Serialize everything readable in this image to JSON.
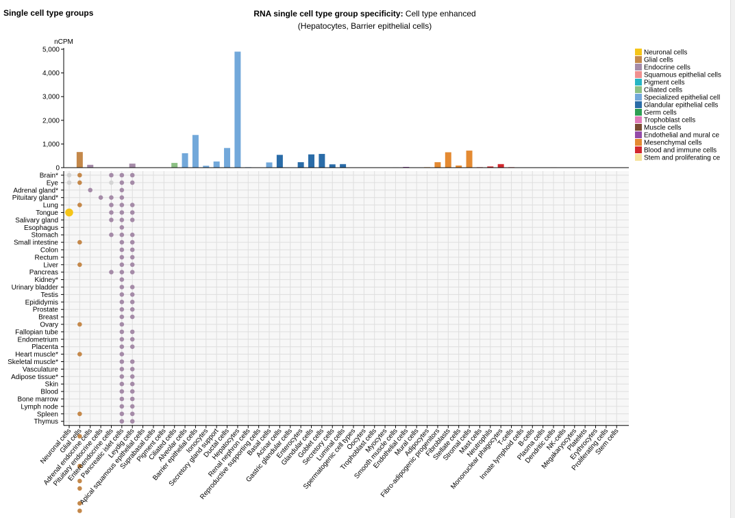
{
  "page": {
    "title": "Single cell type groups"
  },
  "chart_data": {
    "type": "bar+dotmatrix",
    "title_bold": "RNA single cell type group specificity:",
    "title_rest": " Cell type enhanced",
    "subtitle": "(Hepatocytes, Barrier epithelial cells)",
    "ylabel": "nCPM",
    "ylim": [
      0,
      5000
    ],
    "yticks": [
      0,
      1000,
      2000,
      3000,
      4000,
      5000
    ],
    "ytick_labels": [
      "0",
      "1,000",
      "2,000",
      "3,000",
      "4,000",
      "5,000"
    ],
    "groups": [
      {
        "name": "Neuronal cells",
        "color": "#f5c518"
      },
      {
        "name": "Glial cells",
        "color": "#c4884a"
      },
      {
        "name": "Endocrine cells",
        "color": "#a58ba8"
      },
      {
        "name": "Squamous epithelial cells",
        "color": "#f09090"
      },
      {
        "name": "Pigment cells",
        "color": "#26b5c4"
      },
      {
        "name": "Ciliated cells",
        "color": "#8cc084"
      },
      {
        "name": "Specialized epithelial cells",
        "color": "#72a8da"
      },
      {
        "name": "Glandular epithelial cells",
        "color": "#2a6ca8"
      },
      {
        "name": "Germ cells",
        "color": "#2e9e54"
      },
      {
        "name": "Trophoblast cells",
        "color": "#e07ab8"
      },
      {
        "name": "Muscle cells",
        "color": "#7a4a32"
      },
      {
        "name": "Endothelial and mural cells",
        "color": "#944aa8"
      },
      {
        "name": "Mesenchymal cells",
        "color": "#e48a32"
      },
      {
        "name": "Blood and immune cells",
        "color": "#d2282e"
      },
      {
        "name": "Stem and proliferating cells",
        "color": "#f6e29c"
      }
    ],
    "legend_labels": [
      "Neuronal cells",
      "Glial cells",
      "Endocrine cells",
      "Squamous epithelial cells",
      "Pigment cells",
      "Ciliated cells",
      "Specialized epithelial cell",
      "Glandular epithelial cells",
      "Germ cells",
      "Trophoblast cells",
      "Muscle cells",
      "Endothelial and mural ce",
      "Mesenchymal cells",
      "Blood and immune cells",
      "Stem and proliferating ce"
    ],
    "categories": [
      {
        "name": "Neuronal cells",
        "group": 0,
        "value": 0
      },
      {
        "name": "Glial cells",
        "group": 1,
        "value": 660
      },
      {
        "name": "Adrenal endocrine cells",
        "group": 2,
        "value": 120
      },
      {
        "name": "Pituitary endocrine cells",
        "group": 2,
        "value": 0
      },
      {
        "name": "Enteroendocrine cells",
        "group": 2,
        "value": 0
      },
      {
        "name": "Pancreatic islet cells",
        "group": 2,
        "value": 0
      },
      {
        "name": "Leydig cells",
        "group": 2,
        "value": 170
      },
      {
        "name": "Apical squamous epithelial cells",
        "group": 3,
        "value": 0
      },
      {
        "name": "Suprabasal cells",
        "group": 3,
        "value": 0
      },
      {
        "name": "Pigment cells",
        "group": 4,
        "value": 0
      },
      {
        "name": "Ciliated cells",
        "group": 5,
        "value": 200
      },
      {
        "name": "Alveolar cells",
        "group": 6,
        "value": 610
      },
      {
        "name": "Barrier epithelial cells",
        "group": 6,
        "value": 1380
      },
      {
        "name": "Ionocytes",
        "group": 6,
        "value": 80
      },
      {
        "name": "Secretory gland support",
        "group": 6,
        "value": 260
      },
      {
        "name": "Ductal cells",
        "group": 6,
        "value": 830
      },
      {
        "name": "Hepatocytes",
        "group": 6,
        "value": 4900
      },
      {
        "name": "Renal nephron cells",
        "group": 6,
        "value": 20
      },
      {
        "name": "Reproductive supporting cells",
        "group": 6,
        "value": 0
      },
      {
        "name": "Basal cells",
        "group": 6,
        "value": 220
      },
      {
        "name": "Acinar cells",
        "group": 7,
        "value": 540
      },
      {
        "name": "Gastric glandular cells",
        "group": 7,
        "value": 0
      },
      {
        "name": "Enterocytes",
        "group": 7,
        "value": 230
      },
      {
        "name": "Glandular cells",
        "group": 7,
        "value": 560
      },
      {
        "name": "Goblet cells",
        "group": 7,
        "value": 580
      },
      {
        "name": "Secretory cells",
        "group": 7,
        "value": 140
      },
      {
        "name": "Luminal cells",
        "group": 7,
        "value": 150
      },
      {
        "name": "Spermatogenic cell types",
        "group": 8,
        "value": 0
      },
      {
        "name": "Oocytes",
        "group": 8,
        "value": 0
      },
      {
        "name": "Trophoblast cells",
        "group": 9,
        "value": 0
      },
      {
        "name": "Myocytes",
        "group": 10,
        "value": 0
      },
      {
        "name": "Smooth muscle cells",
        "group": 10,
        "value": 15
      },
      {
        "name": "Endothelial cells",
        "group": 11,
        "value": 30
      },
      {
        "name": "Mural cells",
        "group": 11,
        "value": 10
      },
      {
        "name": "Adipocytes",
        "group": 12,
        "value": 20
      },
      {
        "name": "Fibro-adipogenic progenitors",
        "group": 12,
        "value": 230
      },
      {
        "name": "Fibroblasts",
        "group": 12,
        "value": 650
      },
      {
        "name": "Stellate cells",
        "group": 12,
        "value": 90
      },
      {
        "name": "Stromal cells",
        "group": 12,
        "value": 720
      },
      {
        "name": "Mast cells",
        "group": 13,
        "value": 20
      },
      {
        "name": "Neutrophils",
        "group": 13,
        "value": 50
      },
      {
        "name": "Mononuclear phagocytes",
        "group": 13,
        "value": 150
      },
      {
        "name": "T-cells",
        "group": 13,
        "value": 20
      },
      {
        "name": "Innate lymphoid cells",
        "group": 13,
        "value": 10
      },
      {
        "name": "B-cells",
        "group": 13,
        "value": 10
      },
      {
        "name": "Plasma cells",
        "group": 13,
        "value": 10
      },
      {
        "name": "Dendritic cells",
        "group": 13,
        "value": 15
      },
      {
        "name": "NK-cells",
        "group": 13,
        "value": 10
      },
      {
        "name": "Megakaryocytes",
        "group": 13,
        "value": 0
      },
      {
        "name": "Platelets",
        "group": 13,
        "value": 0
      },
      {
        "name": "Erythrocytes",
        "group": 13,
        "value": 0
      },
      {
        "name": "Proliferating cells",
        "group": 14,
        "value": 0
      },
      {
        "name": "Stem cells",
        "group": 14,
        "value": 0
      }
    ],
    "tissues": [
      "Brain*",
      "Eye",
      "Adrenal gland*",
      "Pituitary gland*",
      "Lung",
      "Tongue",
      "Salivary gland",
      "Esophagus",
      "Stomach",
      "Small intestine",
      "Colon",
      "Rectum",
      "Liver",
      "Pancreas",
      "Kidney*",
      "Urinary bladder",
      "Testis",
      "Epididymis",
      "Prostate",
      "Breast",
      "Ovary",
      "Fallopian tube",
      "Endometrium",
      "Placenta",
      "Heart muscle*",
      "Skeletal muscle*",
      "Vasculature",
      "Adipose tissue*",
      "Skin",
      "Blood",
      "Bone marrow",
      "Lymph node",
      "Spleen",
      "Thymus"
    ],
    "dots": [
      [
        0,
        0,
        0
      ],
      [
        0,
        1,
        0
      ],
      [
        0,
        5,
        2
      ],
      [
        1,
        0,
        1
      ],
      [
        1,
        1,
        1
      ],
      [
        1,
        4,
        1
      ],
      [
        1,
        9,
        1
      ],
      [
        1,
        12,
        1
      ],
      [
        1,
        20,
        1
      ],
      [
        1,
        24,
        1
      ],
      [
        1,
        32,
        1
      ],
      [
        1,
        35,
        1
      ],
      [
        1,
        39,
        1
      ],
      [
        1,
        41,
        1
      ],
      [
        1,
        42,
        1
      ],
      [
        1,
        44,
        1
      ],
      [
        1,
        45,
        1
      ],
      [
        1,
        47,
        1
      ],
      [
        2,
        2,
        1
      ],
      [
        3,
        3,
        1
      ],
      [
        4,
        0,
        1
      ],
      [
        4,
        1,
        0
      ],
      [
        4,
        3,
        1
      ],
      [
        4,
        4,
        1
      ],
      [
        4,
        5,
        1
      ],
      [
        4,
        6,
        1
      ],
      [
        4,
        8,
        1
      ],
      [
        4,
        13,
        1
      ],
      [
        5,
        0,
        1
      ],
      [
        5,
        1,
        1
      ],
      [
        5,
        2,
        1
      ],
      [
        5,
        3,
        1
      ],
      [
        5,
        4,
        1
      ],
      [
        5,
        5,
        1
      ],
      [
        5,
        6,
        1
      ],
      [
        5,
        7,
        1
      ],
      [
        5,
        8,
        1
      ],
      [
        5,
        9,
        1
      ],
      [
        5,
        10,
        1
      ],
      [
        5,
        11,
        1
      ],
      [
        5,
        12,
        1
      ],
      [
        5,
        13,
        1
      ],
      [
        5,
        14,
        1
      ],
      [
        5,
        15,
        1
      ],
      [
        5,
        16,
        1
      ],
      [
        5,
        17,
        1
      ],
      [
        5,
        18,
        1
      ],
      [
        5,
        19,
        1
      ],
      [
        5,
        20,
        1
      ],
      [
        5,
        21,
        1
      ],
      [
        5,
        22,
        1
      ],
      [
        5,
        23,
        1
      ],
      [
        5,
        24,
        1
      ],
      [
        5,
        25,
        1
      ],
      [
        5,
        26,
        1
      ],
      [
        5,
        27,
        1
      ],
      [
        5,
        28,
        1
      ],
      [
        5,
        29,
        1
      ],
      [
        5,
        30,
        1
      ],
      [
        5,
        31,
        1
      ],
      [
        5,
        32,
        1
      ],
      [
        5,
        33,
        1
      ],
      [
        6,
        0,
        1
      ],
      [
        6,
        1,
        1
      ],
      [
        6,
        4,
        1
      ],
      [
        6,
        5,
        1
      ],
      [
        6,
        6,
        1
      ],
      [
        6,
        8,
        1
      ],
      [
        6,
        9,
        1
      ],
      [
        6,
        10,
        1
      ],
      [
        6,
        11,
        1
      ],
      [
        6,
        12,
        1
      ],
      [
        6,
        13,
        1
      ],
      [
        6,
        15,
        1
      ],
      [
        6,
        16,
        1
      ],
      [
        6,
        17,
        1
      ],
      [
        6,
        18,
        1
      ],
      [
        6,
        19,
        1
      ],
      [
        6,
        21,
        1
      ],
      [
        6,
        22,
        1
      ],
      [
        6,
        23,
        1
      ],
      [
        6,
        25,
        1
      ],
      [
        6,
        26,
        1
      ],
      [
        6,
        27,
        1
      ],
      [
        6,
        28,
        1
      ],
      [
        6,
        29,
        1
      ],
      [
        6,
        30,
        1
      ],
      [
        6,
        31,
        1
      ],
      [
        6,
        32,
        1
      ],
      [
        6,
        33,
        1
      ]
    ],
    "dots_note": "Dot matrix encoded as [category_index, tissue_index, size_level]. Selected dots from the figure; category indices 0-52, tissue indices 0-33."
  },
  "legend": {
    "position": "top-right"
  }
}
